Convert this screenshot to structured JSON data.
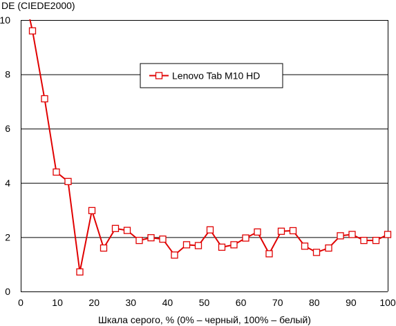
{
  "chart_data": {
    "type": "line",
    "ylabel": "DE (CIEDE2000)",
    "xlabel": "Шкала серого, % (0% – черный, 100% – белый)",
    "xlim": [
      0,
      100
    ],
    "ylim": [
      0,
      10
    ],
    "xticks": [
      0,
      10,
      20,
      30,
      40,
      50,
      60,
      70,
      80,
      90,
      100
    ],
    "yticks": [
      0,
      2,
      4,
      6,
      8,
      10
    ],
    "grid": "horizontal",
    "legend_position": "center-top",
    "colors": {
      "series": "#e00000",
      "grid": "#000000",
      "axis": "#000000"
    },
    "series": [
      {
        "name": "Lenovo Tab M10 HD",
        "marker": "square",
        "x": [
          3.2,
          6.5,
          9.7,
          12.9,
          16.1,
          19.4,
          22.6,
          25.8,
          29.0,
          32.3,
          35.5,
          38.7,
          41.9,
          45.2,
          48.4,
          51.6,
          54.8,
          58.1,
          61.3,
          64.5,
          67.7,
          71.0,
          74.2,
          77.4,
          80.6,
          83.9,
          87.1,
          90.3,
          93.5,
          96.8,
          100
        ],
        "y": [
          9.6,
          7.1,
          4.4,
          4.05,
          0.72,
          2.98,
          1.6,
          2.32,
          2.25,
          1.88,
          1.98,
          1.93,
          1.34,
          1.72,
          1.69,
          2.27,
          1.63,
          1.72,
          1.97,
          2.19,
          1.39,
          2.22,
          2.24,
          1.67,
          1.44,
          1.6,
          2.05,
          2.1,
          1.88,
          1.88,
          2.1
        ],
        "line_start": [
          2.2,
          10.2
        ]
      }
    ]
  }
}
